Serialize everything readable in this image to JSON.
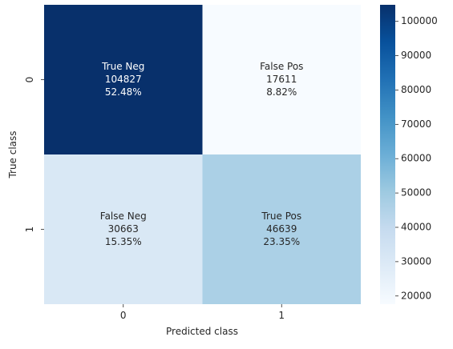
{
  "chart_data": {
    "type": "heatmap",
    "title": "",
    "xlabel": "Predicted class",
    "ylabel": "True class",
    "x_categories": [
      "0",
      "1"
    ],
    "y_categories": [
      "0",
      "1"
    ],
    "values": [
      [
        104827,
        17611
      ],
      [
        30663,
        46639
      ]
    ],
    "cell_labels": [
      [
        {
          "name": "True Neg",
          "count": "104827",
          "percent": "52.48%"
        },
        {
          "name": "False Pos",
          "count": "17611",
          "percent": "8.82%"
        }
      ],
      [
        {
          "name": "False Neg",
          "count": "30663",
          "percent": "15.35%"
        },
        {
          "name": "True Pos",
          "count": "46639",
          "percent": "23.35%"
        }
      ]
    ],
    "colorbar": {
      "colormap": "Blues",
      "vmin": 17611,
      "vmax": 104827,
      "ticks": [
        20000,
        30000,
        40000,
        50000,
        60000,
        70000,
        80000,
        90000,
        100000
      ],
      "tick_labels": [
        "20000",
        "30000",
        "40000",
        "50000",
        "60000",
        "70000",
        "80000",
        "90000",
        "100000"
      ]
    },
    "colors": {
      "low": "#f7fbff",
      "high": "#08306b",
      "text_on_dark": "#ffffff",
      "text_on_light": "#262626"
    },
    "grid": false,
    "legend": "colorbar-right"
  }
}
